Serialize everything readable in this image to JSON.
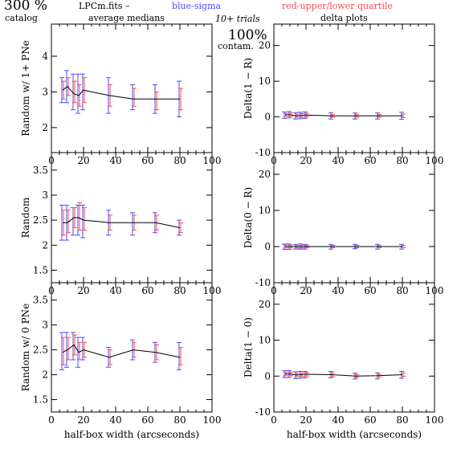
{
  "header": {
    "percent": "300 %",
    "catalog": "catalog",
    "file": "LPCm.fits  –",
    "col1": "average medians",
    "blue": "blue-sigma",
    "red": "red-upper/lower quartile",
    "trials": "10+ trials",
    "delta": "delta plots",
    "contam_pct": "100%",
    "contam": "contam."
  },
  "colors": {
    "blue": "#4b4bff",
    "red": "#ff4a4a",
    "line": "#000000"
  },
  "chart_data": [
    {
      "type": "line",
      "panel": "left-top",
      "ylabel": "Random w/ 1+ PNe",
      "xlabel": "",
      "xlim": [
        0,
        100
      ],
      "ylim": [
        1.3,
        4.9
      ],
      "xticks": [
        0,
        20,
        40,
        60,
        80,
        100
      ],
      "yticks": [
        2,
        3,
        4
      ],
      "x": [
        7,
        10,
        14,
        17,
        20,
        36,
        51,
        65,
        80
      ],
      "y": [
        3.05,
        3.15,
        2.95,
        2.9,
        3.05,
        2.9,
        2.8,
        2.8,
        2.8
      ],
      "sigma": [
        [
          2.7,
          3.4
        ],
        [
          2.7,
          3.6
        ],
        [
          2.5,
          3.5
        ],
        [
          2.4,
          3.5
        ],
        [
          2.5,
          3.5
        ],
        [
          2.4,
          3.4
        ],
        [
          2.5,
          3.2
        ],
        [
          2.4,
          3.2
        ],
        [
          2.3,
          3.3
        ]
      ],
      "quartile": [
        [
          2.8,
          3.3
        ],
        [
          2.9,
          3.4
        ],
        [
          2.7,
          3.3
        ],
        [
          2.6,
          3.2
        ],
        [
          2.7,
          3.4
        ],
        [
          2.6,
          3.2
        ],
        [
          2.6,
          3.1
        ],
        [
          2.5,
          3.0
        ],
        [
          2.5,
          3.1
        ]
      ]
    },
    {
      "type": "line",
      "panel": "right-top",
      "ylabel": "Delta(1 − R)",
      "xlabel": "",
      "xlim": [
        0,
        100
      ],
      "ylim": [
        -10,
        26
      ],
      "xticks": [
        0,
        20,
        40,
        60,
        80,
        100
      ],
      "yticks": [
        -10,
        0,
        10,
        20
      ],
      "x": [
        7,
        10,
        14,
        17,
        20,
        36,
        51,
        65,
        80
      ],
      "y": [
        0.6,
        0.6,
        0.3,
        0.4,
        0.5,
        0.3,
        0.3,
        0.3,
        0.3
      ],
      "sigma": [
        [
          -0.4,
          1.4
        ],
        [
          -0.3,
          1.5
        ],
        [
          -0.6,
          1.2
        ],
        [
          -0.5,
          1.3
        ],
        [
          -0.4,
          1.4
        ],
        [
          -0.6,
          1.2
        ],
        [
          -0.6,
          1.1
        ],
        [
          -0.6,
          1.1
        ],
        [
          -0.7,
          1.3
        ]
      ],
      "quartile": [
        [
          0.1,
          1.0
        ],
        [
          0.1,
          1.1
        ],
        [
          -0.1,
          0.8
        ],
        [
          -0.1,
          0.9
        ],
        [
          0.0,
          1.0
        ],
        [
          -0.1,
          0.7
        ],
        [
          -0.1,
          0.7
        ],
        [
          -0.1,
          0.7
        ],
        [
          -0.2,
          0.8
        ]
      ]
    },
    {
      "type": "line",
      "panel": "left-middle",
      "ylabel": "Random",
      "xlabel": "",
      "xlim": [
        0,
        100
      ],
      "ylim": [
        1.25,
        3.85
      ],
      "xticks": [
        0,
        20,
        40,
        60,
        80,
        100
      ],
      "yticks": [
        1.5,
        2,
        2.5,
        3,
        3.5
      ],
      "x": [
        7,
        10,
        14,
        17,
        20,
        36,
        51,
        65,
        80
      ],
      "y": [
        2.45,
        2.45,
        2.55,
        2.55,
        2.5,
        2.45,
        2.45,
        2.45,
        2.35
      ],
      "sigma": [
        [
          2.1,
          2.8
        ],
        [
          2.1,
          2.8
        ],
        [
          2.2,
          2.75
        ],
        [
          2.2,
          2.8
        ],
        [
          2.15,
          2.8
        ],
        [
          2.2,
          2.7
        ],
        [
          2.2,
          2.65
        ],
        [
          2.25,
          2.65
        ],
        [
          2.2,
          2.5
        ]
      ],
      "quartile": [
        [
          2.2,
          2.7
        ],
        [
          2.25,
          2.7
        ],
        [
          2.35,
          2.75
        ],
        [
          2.3,
          2.85
        ],
        [
          2.3,
          2.75
        ],
        [
          2.3,
          2.6
        ],
        [
          2.3,
          2.6
        ],
        [
          2.3,
          2.6
        ],
        [
          2.25,
          2.45
        ]
      ]
    },
    {
      "type": "line",
      "panel": "right-middle",
      "ylabel": "Delta(0 − R)",
      "xlabel": "",
      "xlim": [
        0,
        100
      ],
      "ylim": [
        -10,
        26
      ],
      "xticks": [
        0,
        20,
        40,
        60,
        80,
        100
      ],
      "yticks": [
        -10,
        0,
        10,
        20
      ],
      "x": [
        7,
        10,
        14,
        17,
        20,
        36,
        51,
        65,
        80
      ],
      "y": [
        0.0,
        0.0,
        0.0,
        0.0,
        0.0,
        0.0,
        0.0,
        0.0,
        0.0
      ],
      "sigma": [
        [
          -0.8,
          0.7
        ],
        [
          -0.8,
          0.7
        ],
        [
          -0.7,
          0.6
        ],
        [
          -0.7,
          0.7
        ],
        [
          -0.7,
          0.6
        ],
        [
          -0.7,
          0.6
        ],
        [
          -0.6,
          0.6
        ],
        [
          -0.7,
          0.6
        ],
        [
          -0.7,
          0.6
        ]
      ],
      "quartile": [
        [
          -0.4,
          0.4
        ],
        [
          -0.4,
          0.4
        ],
        [
          -0.4,
          0.3
        ],
        [
          -0.4,
          0.4
        ],
        [
          -0.3,
          0.3
        ],
        [
          -0.3,
          0.3
        ],
        [
          -0.3,
          0.3
        ],
        [
          -0.3,
          0.3
        ],
        [
          -0.3,
          0.3
        ]
      ]
    },
    {
      "type": "line",
      "panel": "left-bottom",
      "ylabel": "Random w/ 0 PNe",
      "xlabel": "half-box width (arcseconds)",
      "xlim": [
        0,
        100
      ],
      "ylim": [
        1.25,
        3.85
      ],
      "xticks": [
        0,
        20,
        40,
        60,
        80,
        100
      ],
      "yticks": [
        1.5,
        2,
        2.5,
        3,
        3.5
      ],
      "x": [
        7,
        10,
        14,
        17,
        20,
        36,
        51,
        65,
        80
      ],
      "y": [
        2.45,
        2.5,
        2.6,
        2.45,
        2.5,
        2.35,
        2.5,
        2.45,
        2.35
      ],
      "sigma": [
        [
          2.1,
          2.85
        ],
        [
          2.15,
          2.85
        ],
        [
          2.3,
          2.85
        ],
        [
          2.15,
          2.75
        ],
        [
          2.3,
          2.75
        ],
        [
          2.15,
          2.55
        ],
        [
          2.3,
          2.7
        ],
        [
          2.25,
          2.65
        ],
        [
          2.1,
          2.65
        ]
      ],
      "quartile": [
        [
          2.2,
          2.75
        ],
        [
          2.3,
          2.75
        ],
        [
          2.4,
          2.8
        ],
        [
          2.3,
          2.65
        ],
        [
          2.35,
          2.65
        ],
        [
          2.2,
          2.5
        ],
        [
          2.35,
          2.65
        ],
        [
          2.3,
          2.6
        ],
        [
          2.2,
          2.55
        ]
      ]
    },
    {
      "type": "line",
      "panel": "right-bottom",
      "ylabel": "Delta(1 − 0)",
      "xlabel": "half-box width (arcseconds)",
      "xlim": [
        0,
        100
      ],
      "ylim": [
        -10,
        26
      ],
      "xticks": [
        0,
        20,
        40,
        60,
        80,
        100
      ],
      "yticks": [
        -10,
        0,
        10,
        20
      ],
      "x": [
        7,
        10,
        14,
        17,
        20,
        36,
        51,
        65,
        80
      ],
      "y": [
        0.6,
        0.6,
        0.3,
        0.4,
        0.5,
        0.4,
        0.0,
        0.1,
        0.4
      ],
      "sigma": [
        [
          -0.4,
          1.5
        ],
        [
          -0.4,
          1.5
        ],
        [
          -0.7,
          1.2
        ],
        [
          -0.6,
          1.3
        ],
        [
          -0.5,
          1.3
        ],
        [
          -0.5,
          1.3
        ],
        [
          -0.8,
          0.8
        ],
        [
          -0.8,
          0.9
        ],
        [
          -0.6,
          1.3
        ]
      ],
      "quartile": [
        [
          0.1,
          1.1
        ],
        [
          0.1,
          1.1
        ],
        [
          -0.2,
          0.8
        ],
        [
          -0.1,
          0.9
        ],
        [
          0.0,
          1.0
        ],
        [
          -0.1,
          0.9
        ],
        [
          -0.4,
          0.4
        ],
        [
          -0.3,
          0.5
        ],
        [
          -0.1,
          0.9
        ]
      ]
    }
  ]
}
